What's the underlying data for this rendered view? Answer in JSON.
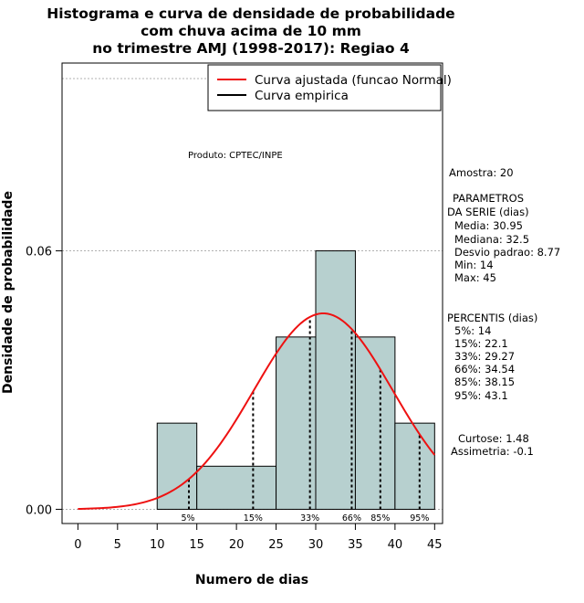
{
  "title_lines": [
    "Histograma e curva de densidade de probabilidade",
    "com chuva acima de 10 mm",
    "no trimestre AMJ (1998-2017): Regiao 4"
  ],
  "legend": {
    "fitted": "Curva ajustada (funcao Normal)",
    "empirical": "Curva empirica"
  },
  "product_note": "Produto: CPTEC/INPE",
  "stats": {
    "sample": "Amostra: 20",
    "params_header_1": "PARAMETROS",
    "params_header_2": "DA SERIE (dias)",
    "media": "Media: 30.95",
    "mediana": "Mediana: 32.5",
    "desvio": "Desvio padrao: 8.77",
    "min": "Min: 14",
    "max": "Max: 45",
    "percentis_header": "PERCENTIS (dias)",
    "p5": "5%: 14",
    "p15": "15%: 22.1",
    "p33": "33%: 29.27",
    "p66": "66%: 34.54",
    "p85": "85%: 38.15",
    "p95": "95%: 43.1",
    "curtose": "Curtose: 1.48",
    "assimetria": "Assimetria: -0.1"
  },
  "colors": {
    "bar_fill": "#b7d0cf",
    "fitted_curve": "#ee1111",
    "grid": "#b0b0b0"
  },
  "chart_data": {
    "type": "bar",
    "subtype": "histogram",
    "xlabel": "Numero de dias",
    "ylabel": "Densidade de probabilidade",
    "xlim": [
      -2,
      46
    ],
    "ylim": [
      -0.0033,
      0.1036
    ],
    "x_ticks": [
      0,
      5,
      10,
      15,
      20,
      25,
      30,
      35,
      40,
      45
    ],
    "y_ticks": [
      0.0,
      0.06
    ],
    "y_tick_labels": [
      "0.00",
      "0.06"
    ],
    "bins": [
      {
        "start": 10,
        "end": 15,
        "density": 0.02
      },
      {
        "start": 15,
        "end": 25,
        "density": 0.01
      },
      {
        "start": 25,
        "end": 30,
        "density": 0.04
      },
      {
        "start": 30,
        "end": 35,
        "density": 0.06
      },
      {
        "start": 35,
        "end": 40,
        "density": 0.04
      },
      {
        "start": 40,
        "end": 45,
        "density": 0.02
      }
    ],
    "fitted_normal": {
      "mean": 30.95,
      "sd": 8.77,
      "x_from": 0,
      "x_to": 45
    },
    "percentiles": [
      {
        "label": "5%",
        "value": 14
      },
      {
        "label": "15%",
        "value": 22.1
      },
      {
        "label": "33%",
        "value": 29.27
      },
      {
        "label": "66%",
        "value": 34.54
      },
      {
        "label": "85%",
        "value": 38.15
      },
      {
        "label": "95%",
        "value": 43.1
      }
    ],
    "gridlines_y": [
      0.06,
      0.1
    ],
    "legend_position": "top-right"
  }
}
